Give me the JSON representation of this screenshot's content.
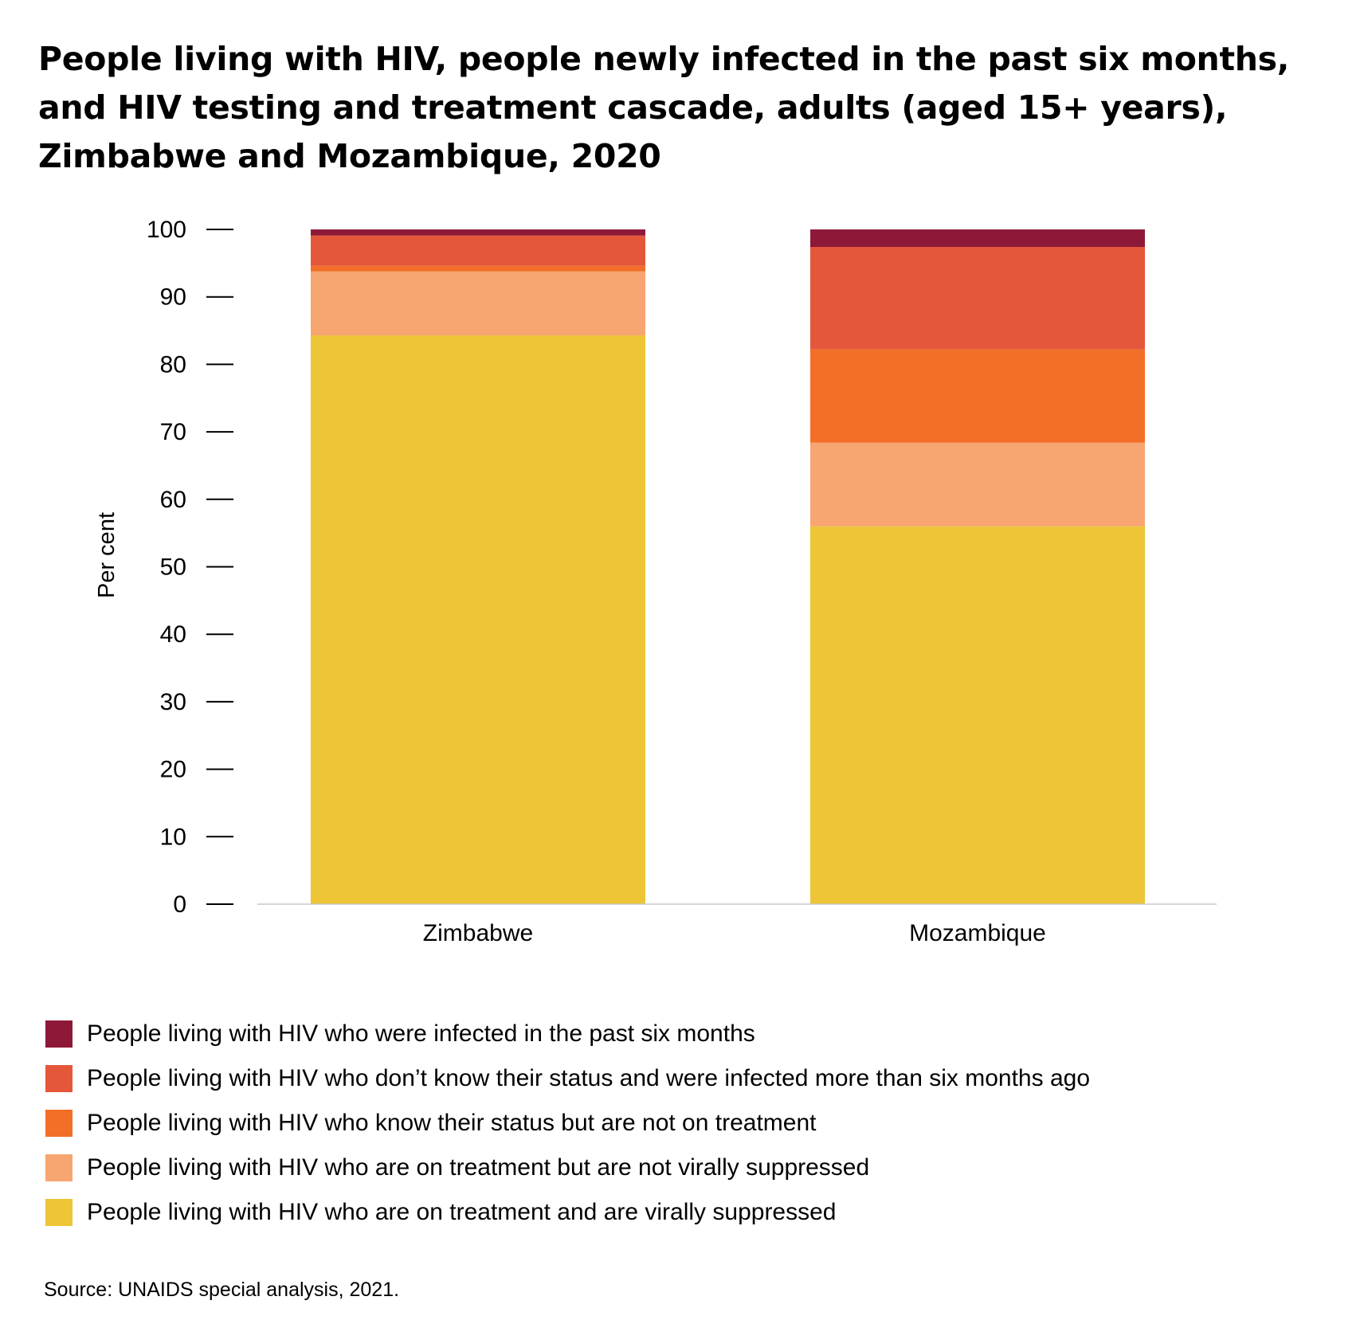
{
  "title_lines": [
    "People living with HIV, people newly infected in the past six months,",
    "and HIV testing and treatment cascade, adults (aged 15+ years),",
    "Zimbabwe and Mozambique, 2020"
  ],
  "source": "Source: UNAIDS special analysis, 2021.",
  "chart_data": {
    "type": "bar",
    "stacked": true,
    "title": "People living with HIV, people newly infected in the past six months, and HIV testing and treatment cascade, adults (aged 15+ years), Zimbabwe and Mozambique, 2020",
    "xlabel": "",
    "ylabel": "Per cent",
    "ylim": [
      0,
      100
    ],
    "yticks": [
      0,
      10,
      20,
      30,
      40,
      50,
      60,
      70,
      80,
      90,
      100
    ],
    "categories": [
      "Zimbabwe",
      "Mozambique"
    ],
    "grid": false,
    "legend_position": "bottom",
    "series": [
      {
        "name": "People living with HIV who are on treatment and are virally suppressed",
        "color": "#EDC536",
        "values": [
          84.3,
          56.0
        ]
      },
      {
        "name": "People living with HIV who are on treatment but are not virally suppressed",
        "color": "#F7A571",
        "values": [
          9.5,
          12.4
        ]
      },
      {
        "name": "People living with HIV who know their status but are not on treatment",
        "color": "#F26F27",
        "values": [
          0.8,
          13.8
        ]
      },
      {
        "name": "People living with HIV who don’t know their status and were infected more than six months ago",
        "color": "#E5573A",
        "values": [
          4.5,
          15.2
        ]
      },
      {
        "name": "People living with HIV who were infected in the past six months",
        "color": "#8E1838",
        "values": [
          0.9,
          2.6
        ]
      }
    ]
  }
}
